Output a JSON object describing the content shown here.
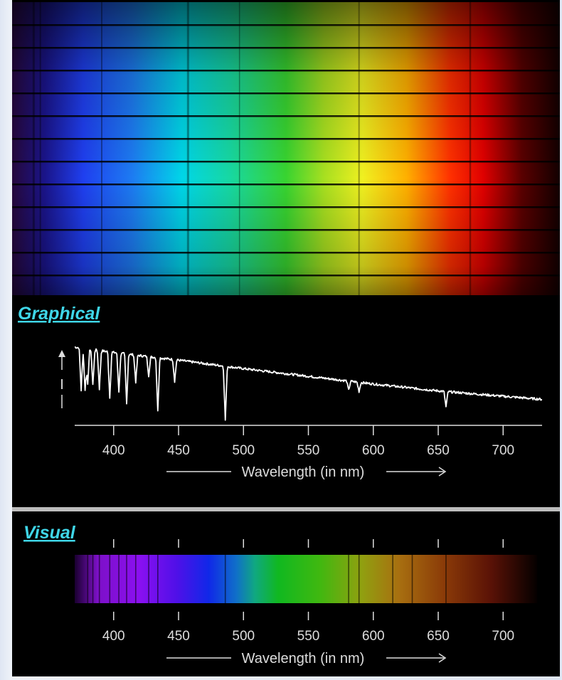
{
  "sections": {
    "graphical_title": "Graphical",
    "visual_title": "Visual"
  },
  "intensity_label": "I",
  "chart_data": [
    {
      "type": "line",
      "title": "Graphical",
      "xlabel": "Wavelength (in nm)",
      "ylabel": "I",
      "xlim": [
        370,
        730
      ],
      "xticks": [
        400,
        450,
        500,
        550,
        600,
        650,
        700
      ],
      "grid": false,
      "series": [
        {
          "x": [
            370,
            400,
            450,
            500,
            550,
            600,
            650,
            700,
            730
          ],
          "y": [
            1.0,
            0.93,
            0.83,
            0.72,
            0.62,
            0.52,
            0.43,
            0.36,
            0.32
          ]
        }
      ],
      "absorption_lines": [
        {
          "x": 375,
          "depth": 0.55
        },
        {
          "x": 378,
          "depth": 0.55
        },
        {
          "x": 380,
          "depth": 0.45
        },
        {
          "x": 384,
          "depth": 0.45
        },
        {
          "x": 389,
          "depth": 0.5
        },
        {
          "x": 397,
          "depth": 0.6
        },
        {
          "x": 404,
          "depth": 0.5
        },
        {
          "x": 410,
          "depth": 0.65
        },
        {
          "x": 417,
          "depth": 0.35
        },
        {
          "x": 427,
          "depth": 0.25
        },
        {
          "x": 434,
          "depth": 0.7
        },
        {
          "x": 447,
          "depth": 0.28
        },
        {
          "x": 486,
          "depth": 0.7
        },
        {
          "x": 581,
          "depth": 0.12
        },
        {
          "x": 589,
          "depth": 0.12
        },
        {
          "x": 656,
          "depth": 0.2
        }
      ]
    },
    {
      "type": "spectrum",
      "title": "Visual",
      "xlabel": "Wavelength (in nm)",
      "xlim": [
        370,
        730
      ],
      "xticks": [
        400,
        450,
        500,
        550,
        600,
        650,
        700
      ],
      "absorption_lines": [
        380,
        384,
        389,
        397,
        404,
        410,
        417,
        427,
        434,
        486,
        581,
        589,
        615,
        630,
        656
      ]
    }
  ],
  "colors": {
    "title": "#3fd6e8",
    "line": "#ffffff",
    "axis": "#dddddd",
    "divider": "#bdbdbd"
  }
}
